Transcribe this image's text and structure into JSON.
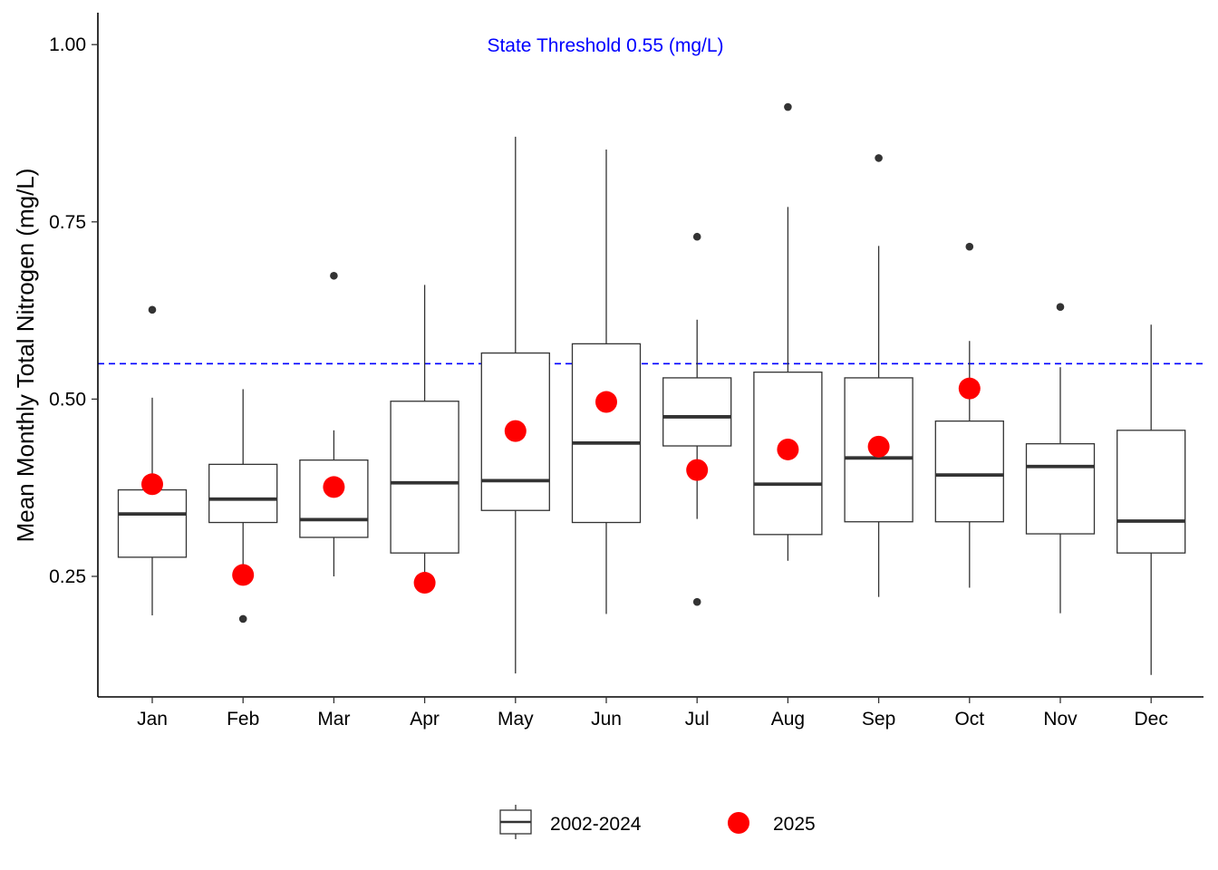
{
  "chart_data": {
    "type": "box",
    "title": "",
    "xlabel": "",
    "ylabel": "Mean Monthly Total Nitrogen (mg/L)",
    "ylim": [
      0.08,
      1.045
    ],
    "yticks": [
      0.25,
      0.5,
      0.75,
      1.0
    ],
    "ytick_labels": [
      "0.25",
      "0.50",
      "0.75",
      "1.00"
    ],
    "categories": [
      "Jan",
      "Feb",
      "Mar",
      "Apr",
      "May",
      "Jun",
      "Jul",
      "Aug",
      "Sep",
      "Oct",
      "Nov",
      "Dec"
    ],
    "grid": false,
    "legend_position": "bottom",
    "threshold": {
      "value": 0.55,
      "label": "State Threshold 0.55 (mg/L)",
      "color": "#0000ff"
    },
    "series": [
      {
        "name": "2002-2024",
        "kind": "boxplot",
        "boxes": [
          {
            "lower_whisker": 0.195,
            "q1": 0.277,
            "median": 0.338,
            "q3": 0.372,
            "upper_whisker": 0.502,
            "outliers": [
              0.626
            ]
          },
          {
            "lower_whisker": 0.25,
            "q1": 0.326,
            "median": 0.359,
            "q3": 0.408,
            "upper_whisker": 0.514,
            "outliers": [
              0.19
            ]
          },
          {
            "lower_whisker": 0.25,
            "q1": 0.305,
            "median": 0.33,
            "q3": 0.414,
            "upper_whisker": 0.456,
            "outliers": [
              0.674
            ]
          },
          {
            "lower_whisker": 0.25,
            "q1": 0.283,
            "median": 0.382,
            "q3": 0.497,
            "upper_whisker": 0.661,
            "outliers": []
          },
          {
            "lower_whisker": 0.113,
            "q1": 0.343,
            "median": 0.385,
            "q3": 0.565,
            "upper_whisker": 0.87,
            "outliers": []
          },
          {
            "lower_whisker": 0.197,
            "q1": 0.326,
            "median": 0.438,
            "q3": 0.578,
            "upper_whisker": 0.852,
            "outliers": []
          },
          {
            "lower_whisker": 0.331,
            "q1": 0.434,
            "median": 0.475,
            "q3": 0.53,
            "upper_whisker": 0.612,
            "outliers": [
              0.729,
              0.214
            ]
          },
          {
            "lower_whisker": 0.272,
            "q1": 0.309,
            "median": 0.38,
            "q3": 0.538,
            "upper_whisker": 0.771,
            "outliers": [
              0.912
            ]
          },
          {
            "lower_whisker": 0.221,
            "q1": 0.327,
            "median": 0.417,
            "q3": 0.53,
            "upper_whisker": 0.716,
            "outliers": [
              0.84
            ]
          },
          {
            "lower_whisker": 0.234,
            "q1": 0.327,
            "median": 0.393,
            "q3": 0.469,
            "upper_whisker": 0.582,
            "outliers": [
              0.715
            ]
          },
          {
            "lower_whisker": 0.198,
            "q1": 0.31,
            "median": 0.405,
            "q3": 0.437,
            "upper_whisker": 0.545,
            "outliers": [
              0.63
            ]
          },
          {
            "lower_whisker": 0.111,
            "q1": 0.283,
            "median": 0.328,
            "q3": 0.456,
            "upper_whisker": 0.605,
            "outliers": []
          }
        ]
      },
      {
        "name": "2025",
        "kind": "points",
        "color": "#ff0000",
        "values": [
          0.38,
          0.252,
          0.376,
          0.241,
          0.455,
          0.496,
          0.4,
          0.429,
          0.433,
          0.515,
          null,
          null
        ]
      }
    ]
  },
  "colors": {
    "box_stroke": "#333333",
    "axis": "#000000",
    "point": "#ff0000",
    "threshold": "#0000ff"
  }
}
